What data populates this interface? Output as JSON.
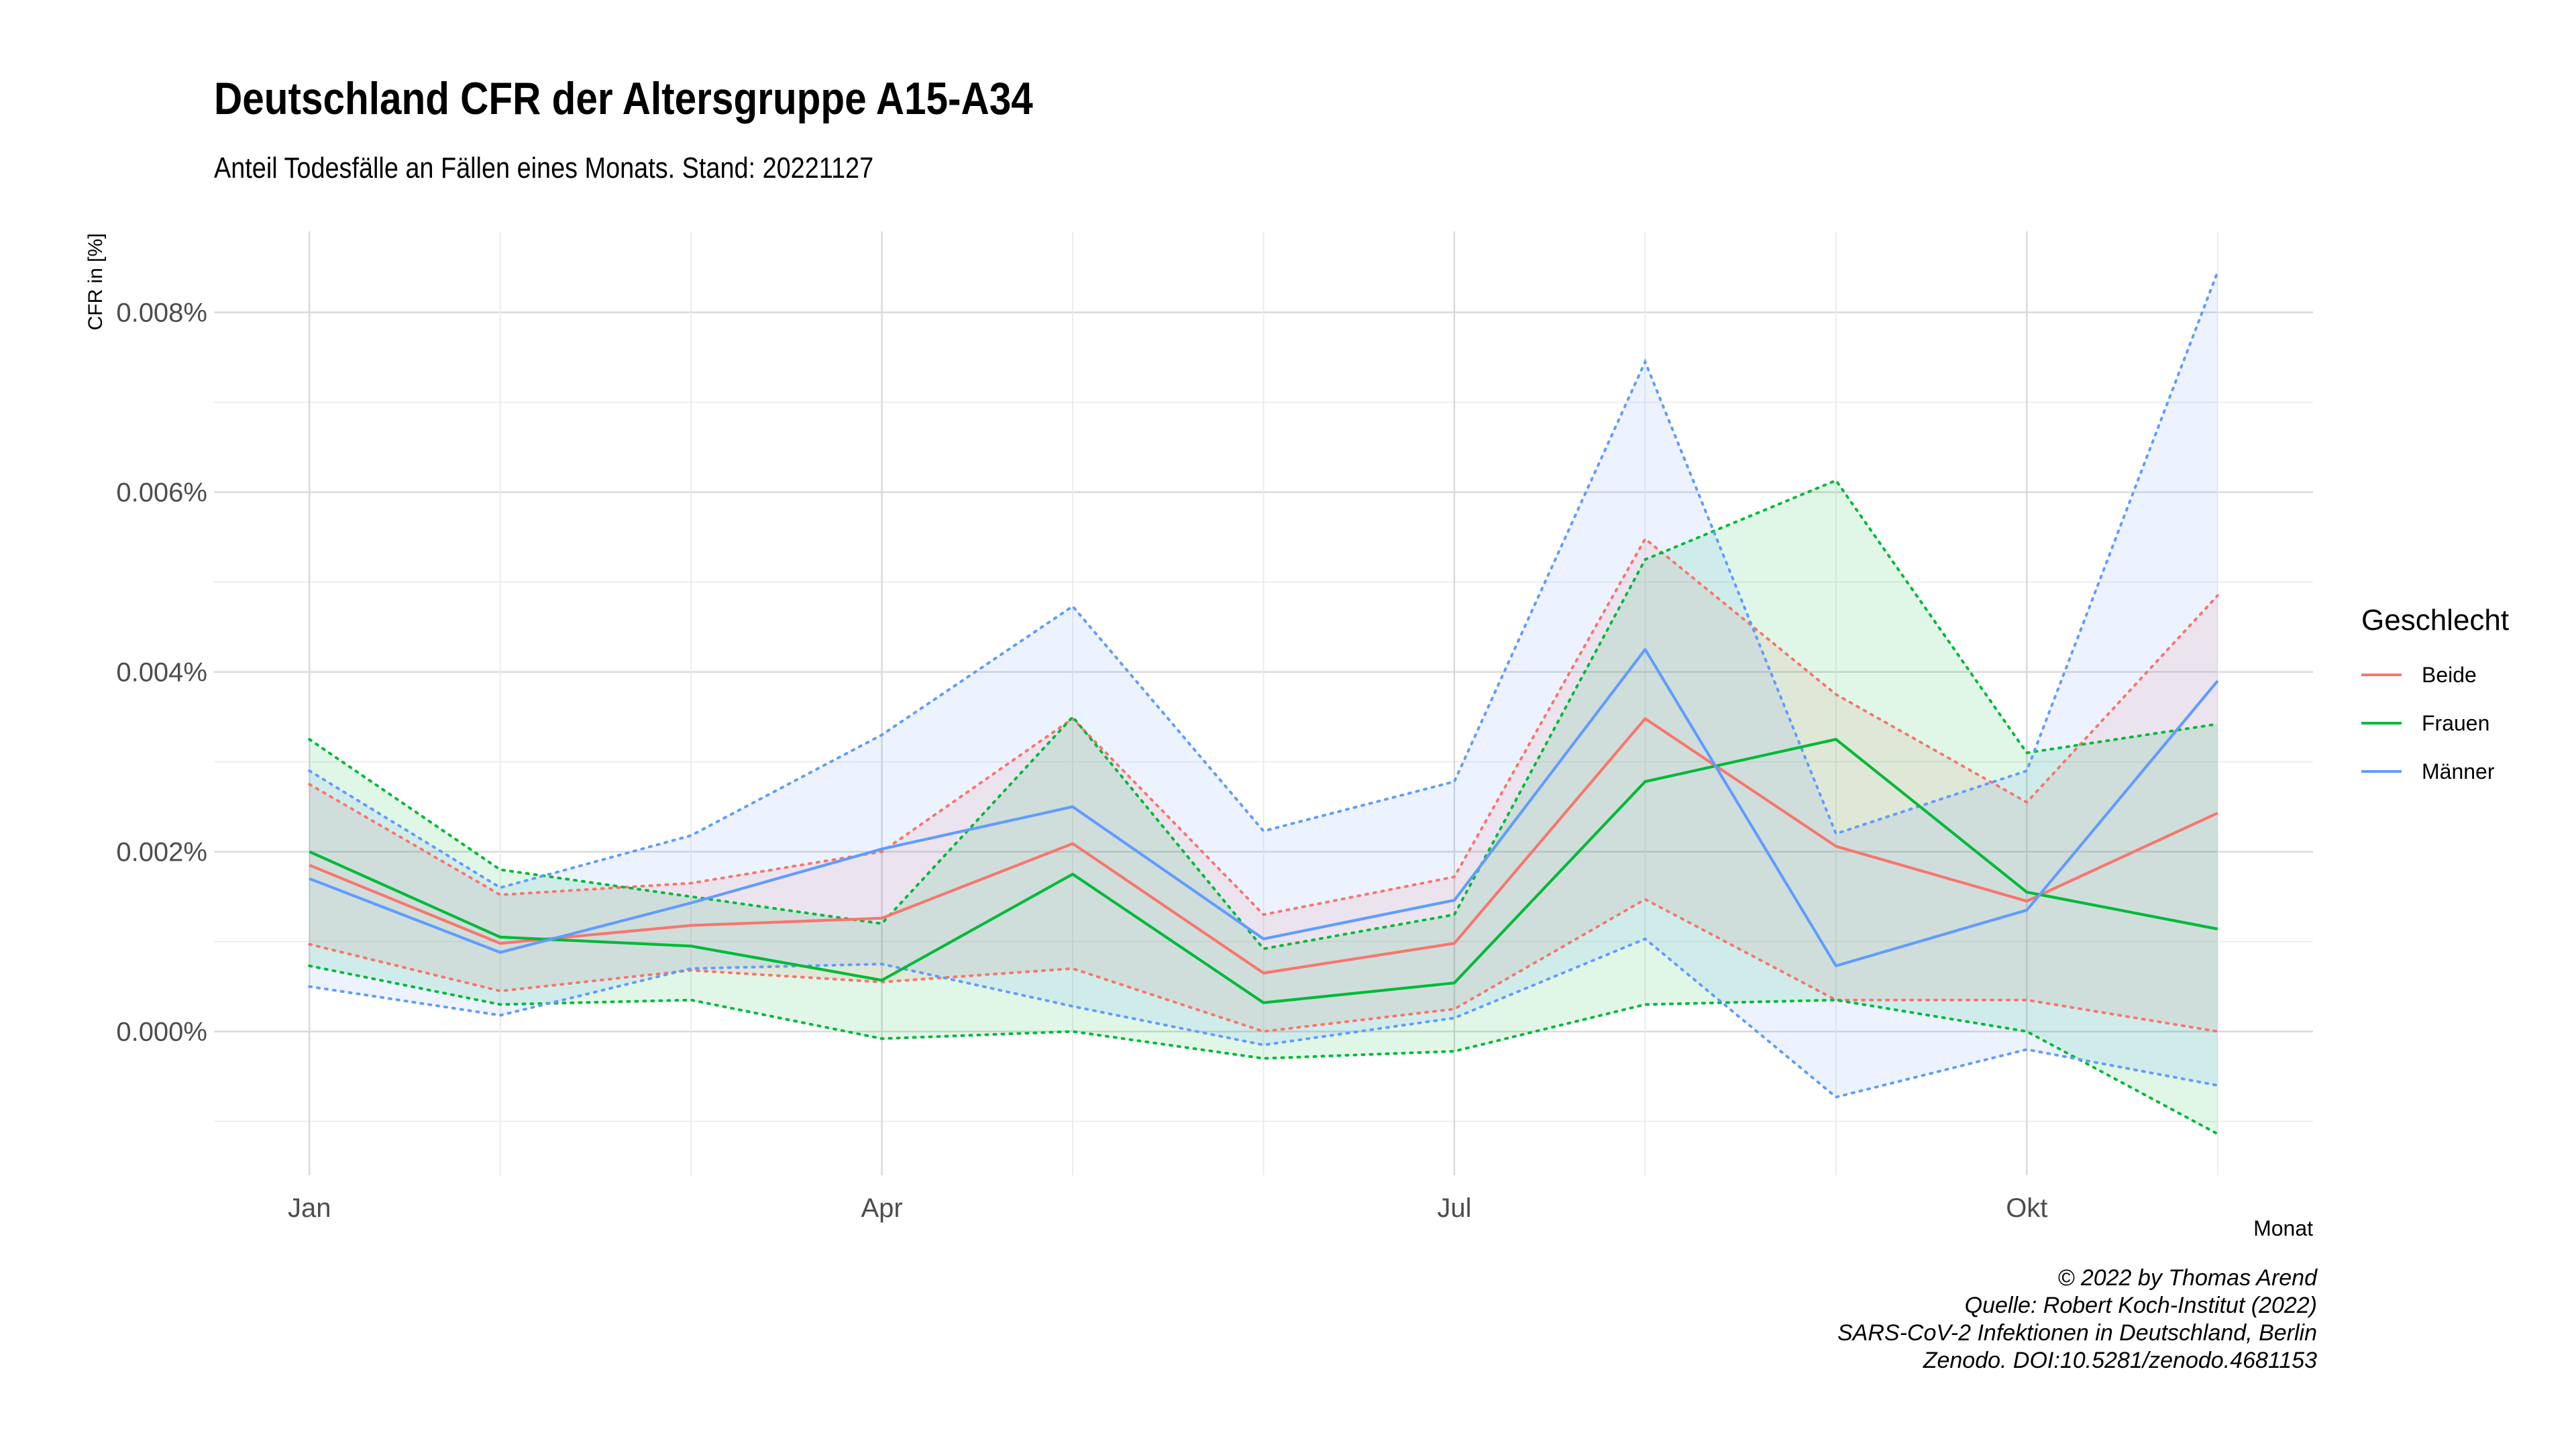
{
  "chart_data": {
    "type": "line",
    "title": "Deutschland CFR der Altersgruppe A15-A34",
    "subtitle": "Anteil Todesfälle an Fällen eines Monats. Stand: 20221127",
    "xlabel": "Monat",
    "ylabel": "CFR in [%]",
    "x_ticks": [
      "Jan",
      "Apr",
      "Jul",
      "Okt"
    ],
    "x": [
      1,
      2,
      3,
      4,
      5,
      6,
      7,
      8,
      9,
      10,
      11
    ],
    "xlim": [
      0.5,
      11.5
    ],
    "y_ticks": [
      "0.000%",
      "0.002%",
      "0.004%",
      "0.006%",
      "0.008%"
    ],
    "y_tick_values": [
      0,
      0.002,
      0.004,
      0.006,
      0.008
    ],
    "ylim": [
      -0.0016,
      0.0089
    ],
    "grid": true,
    "legend_title": "Geschlecht",
    "legend_position": "right",
    "series": [
      {
        "name": "Beide",
        "color": "#F8766D",
        "values": [
          0.00185,
          0.00098,
          0.00118,
          0.00126,
          0.00209,
          0.00065,
          0.00098,
          0.00348,
          0.00206,
          0.00145,
          0.00243
        ],
        "lower": [
          0.00097,
          0.00045,
          0.00068,
          0.00055,
          0.0007,
          0.0,
          0.00025,
          0.00147,
          0.00035,
          0.00035,
          0.0
        ],
        "upper": [
          0.00275,
          0.00152,
          0.00165,
          0.002,
          0.00348,
          0.0013,
          0.00172,
          0.00548,
          0.00375,
          0.00255,
          0.00485
        ]
      },
      {
        "name": "Frauen",
        "color": "#00BA38",
        "values": [
          0.002,
          0.00105,
          0.00095,
          0.00057,
          0.00175,
          0.00032,
          0.00054,
          0.00278,
          0.00325,
          0.00155,
          0.00114
        ],
        "lower": [
          0.00073,
          0.0003,
          0.00035,
          -8e-05,
          0.0,
          -0.0003,
          -0.00022,
          0.0003,
          0.00035,
          0.0,
          -0.00114
        ],
        "upper": [
          0.00325,
          0.0018,
          0.0015,
          0.0012,
          0.0035,
          0.00092,
          0.0013,
          0.00525,
          0.00613,
          0.0031,
          0.00342
        ]
      },
      {
        "name": "Männer",
        "color": "#619CFF",
        "values": [
          0.0017,
          0.00088,
          0.00143,
          0.00203,
          0.0025,
          0.00103,
          0.00146,
          0.00425,
          0.00073,
          0.00135,
          0.0039
        ],
        "lower": [
          0.0005,
          0.00018,
          0.0007,
          0.00075,
          0.00028,
          -0.00015,
          0.00015,
          0.00103,
          -0.00073,
          -0.0002,
          -0.0006
        ],
        "upper": [
          0.0029,
          0.0016,
          0.00218,
          0.0033,
          0.00473,
          0.00223,
          0.00278,
          0.00745,
          0.0022,
          0.0029,
          0.00845
        ]
      }
    ]
  },
  "caption_lines": [
    "© 2022 by Thomas Arend",
    "Quelle: Robert Koch-Institut (2022)",
    "SARS-CoV-2 Infektionen in Deutschland, Berlin",
    "Zenodo. DOI:10.5281/zenodo.4681153"
  ]
}
